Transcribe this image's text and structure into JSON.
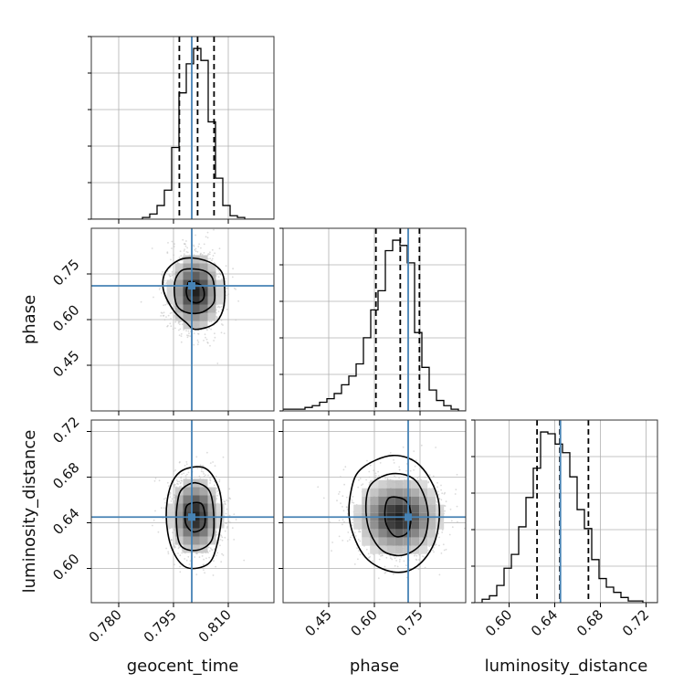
{
  "chart_data": {
    "type": "corner",
    "parameters": [
      {
        "name": "geocent_time",
        "range": [
          0.7725,
          0.8225
        ],
        "ticks": [
          0.78,
          0.795,
          0.81
        ],
        "tick_labels": [
          "0.780",
          "0.795",
          "0.810"
        ],
        "truth": 0.8,
        "quantiles": [
          0.7966,
          0.8016,
          0.8061
        ]
      },
      {
        "name": "phase",
        "range": [
          0.3,
          0.9
        ],
        "ticks": [
          0.45,
          0.6,
          0.75
        ],
        "tick_labels": [
          "0.45",
          "0.60",
          "0.75"
        ],
        "truth": 0.711,
        "quantiles": [
          0.605,
          0.685,
          0.748
        ]
      },
      {
        "name": "luminosity_distance",
        "range": [
          0.57,
          0.73
        ],
        "ticks": [
          0.6,
          0.64,
          0.68,
          0.72
        ],
        "tick_labels": [
          "0.60",
          "0.64",
          "0.68",
          "0.72"
        ],
        "truth": 0.645,
        "quantiles": [
          0.6245,
          0.6445,
          0.6695
        ]
      }
    ],
    "histograms": [
      {
        "parameter": "geocent_time",
        "bin_edges": [
          0.7725,
          0.7745,
          0.7765,
          0.7785,
          0.7805,
          0.7825,
          0.7845,
          0.7865,
          0.7885,
          0.7905,
          0.7925,
          0.7945,
          0.7965,
          0.7985,
          0.8005,
          0.8025,
          0.8045,
          0.8065,
          0.8085,
          0.8105,
          0.8125,
          0.8145,
          0.8165,
          0.8185,
          0.8205,
          0.8225
        ],
        "counts": [
          0,
          0,
          0,
          0,
          0,
          0,
          0,
          0.01,
          0.03,
          0.08,
          0.17,
          0.42,
          0.74,
          0.91,
          1.0,
          0.93,
          0.57,
          0.24,
          0.08,
          0.02,
          0.01,
          0,
          0,
          0,
          0
        ]
      },
      {
        "parameter": "phase",
        "bin_edges": [
          0.3,
          0.324,
          0.348,
          0.372,
          0.396,
          0.42,
          0.444,
          0.468,
          0.492,
          0.516,
          0.54,
          0.564,
          0.588,
          0.612,
          0.636,
          0.66,
          0.684,
          0.708,
          0.732,
          0.756,
          0.78,
          0.804,
          0.828,
          0.852,
          0.876,
          0.9
        ],
        "counts": [
          0.01,
          0.01,
          0.01,
          0.02,
          0.03,
          0.05,
          0.07,
          0.1,
          0.15,
          0.2,
          0.27,
          0.42,
          0.58,
          0.69,
          0.92,
          0.98,
          0.95,
          0.85,
          0.45,
          0.25,
          0.12,
          0.06,
          0.03,
          0.01,
          0.0
        ]
      },
      {
        "parameter": "luminosity_distance",
        "bin_edges": [
          0.57,
          0.5764,
          0.5828,
          0.5892,
          0.5956,
          0.602,
          0.6084,
          0.6148,
          0.6212,
          0.6276,
          0.634,
          0.6404,
          0.6468,
          0.6532,
          0.6596,
          0.666,
          0.6724,
          0.6788,
          0.6852,
          0.6916,
          0.698,
          0.7044,
          0.7108,
          0.7172,
          0.7236,
          0.73
        ],
        "counts": [
          0.0,
          0.02,
          0.04,
          0.1,
          0.2,
          0.28,
          0.44,
          0.61,
          0.78,
          0.99,
          0.98,
          0.92,
          0.87,
          0.73,
          0.54,
          0.43,
          0.25,
          0.14,
          0.09,
          0.06,
          0.03,
          0.01,
          0.01,
          0.0,
          0.0
        ]
      }
    ],
    "pairs": [
      {
        "x": "geocent_time",
        "y": "phase",
        "center": [
          0.801,
          0.69
        ],
        "spread": [
          0.0035,
          0.065
        ],
        "contours": [
          {
            "level": 0.39,
            "points": [
              [
                0.7995,
                0.725
              ],
              [
                0.8025,
                0.713
              ],
              [
                0.8034,
                0.69
              ],
              [
                0.803,
                0.665
              ],
              [
                0.8012,
                0.655
              ],
              [
                0.7992,
                0.665
              ],
              [
                0.7985,
                0.69
              ],
              [
                0.7988,
                0.712
              ]
            ]
          },
          {
            "level": 0.86,
            "points": [
              [
                0.798,
                0.765
              ],
              [
                0.803,
                0.762
              ],
              [
                0.8055,
                0.74
              ],
              [
                0.8062,
                0.7
              ],
              [
                0.806,
                0.655
              ],
              [
                0.803,
                0.625
              ],
              [
                0.799,
                0.622
              ],
              [
                0.796,
                0.645
              ],
              [
                0.7952,
                0.7
              ],
              [
                0.7958,
                0.74
              ]
            ]
          },
          {
            "level": 0.99,
            "points": [
              [
                0.7975,
                0.8
              ],
              [
                0.8035,
                0.795
              ],
              [
                0.808,
                0.76
              ],
              [
                0.809,
                0.7
              ],
              [
                0.8085,
                0.63
              ],
              [
                0.806,
                0.585
              ],
              [
                0.801,
                0.568
              ],
              [
                0.7985,
                0.59
              ],
              [
                0.795,
                0.63
              ],
              [
                0.7922,
                0.7
              ],
              [
                0.793,
                0.76
              ]
            ]
          }
        ]
      },
      {
        "x": "geocent_time",
        "y": "luminosity_distance",
        "center": [
          0.801,
          0.646
        ],
        "spread": [
          0.0035,
          0.017
        ],
        "contours": [
          {
            "level": 0.39,
            "points": [
              [
                0.799,
                0.656
              ],
              [
                0.8025,
                0.657
              ],
              [
                0.8036,
                0.647
              ],
              [
                0.8032,
                0.636
              ],
              [
                0.8005,
                0.632
              ],
              [
                0.7985,
                0.638
              ],
              [
                0.7982,
                0.648
              ]
            ]
          },
          {
            "level": 0.86,
            "points": [
              [
                0.7975,
                0.67
              ],
              [
                0.801,
                0.675
              ],
              [
                0.8048,
                0.668
              ],
              [
                0.806,
                0.648
              ],
              [
                0.8055,
                0.625
              ],
              [
                0.8015,
                0.616
              ],
              [
                0.797,
                0.62
              ],
              [
                0.7958,
                0.64
              ],
              [
                0.7962,
                0.66
              ]
            ]
          },
          {
            "level": 0.99,
            "points": [
              [
                0.7975,
                0.686
              ],
              [
                0.8035,
                0.688
              ],
              [
                0.8072,
                0.672
              ],
              [
                0.8082,
                0.65
              ],
              [
                0.807,
                0.622
              ],
              [
                0.8045,
                0.604
              ],
              [
                0.7985,
                0.601
              ],
              [
                0.7945,
                0.618
              ],
              [
                0.793,
                0.646
              ],
              [
                0.7942,
                0.672
              ]
            ]
          }
        ]
      },
      {
        "x": "phase",
        "y": "luminosity_distance",
        "center": [
          0.68,
          0.645
        ],
        "spread": [
          0.07,
          0.017
        ],
        "contours": [
          {
            "level": 0.39,
            "points": [
              [
                0.65,
                0.662
              ],
              [
                0.7,
                0.66
              ],
              [
                0.72,
                0.648
              ],
              [
                0.71,
                0.632
              ],
              [
                0.67,
                0.628
              ],
              [
                0.64,
                0.638
              ],
              [
                0.635,
                0.652
              ]
            ]
          },
          {
            "level": 0.86,
            "points": [
              [
                0.59,
                0.674
              ],
              [
                0.66,
                0.683
              ],
              [
                0.735,
                0.677
              ],
              [
                0.775,
                0.652
              ],
              [
                0.762,
                0.625
              ],
              [
                0.7,
                0.612
              ],
              [
                0.63,
                0.615
              ],
              [
                0.585,
                0.632
              ],
              [
                0.572,
                0.655
              ]
            ]
          },
          {
            "level": 0.99,
            "points": [
              [
                0.56,
                0.688
              ],
              [
                0.66,
                0.699
              ],
              [
                0.75,
                0.69
              ],
              [
                0.81,
                0.66
              ],
              [
                0.8,
                0.625
              ],
              [
                0.74,
                0.602
              ],
              [
                0.66,
                0.597
              ],
              [
                0.57,
                0.61
              ],
              [
                0.52,
                0.64
              ],
              [
                0.525,
                0.67
              ]
            ]
          }
        ]
      }
    ],
    "grid": true,
    "colors": {
      "line": "#000000",
      "truth": "#4682b4",
      "grid": "#b0b0b0",
      "scatter": "#bdbdbd"
    }
  }
}
